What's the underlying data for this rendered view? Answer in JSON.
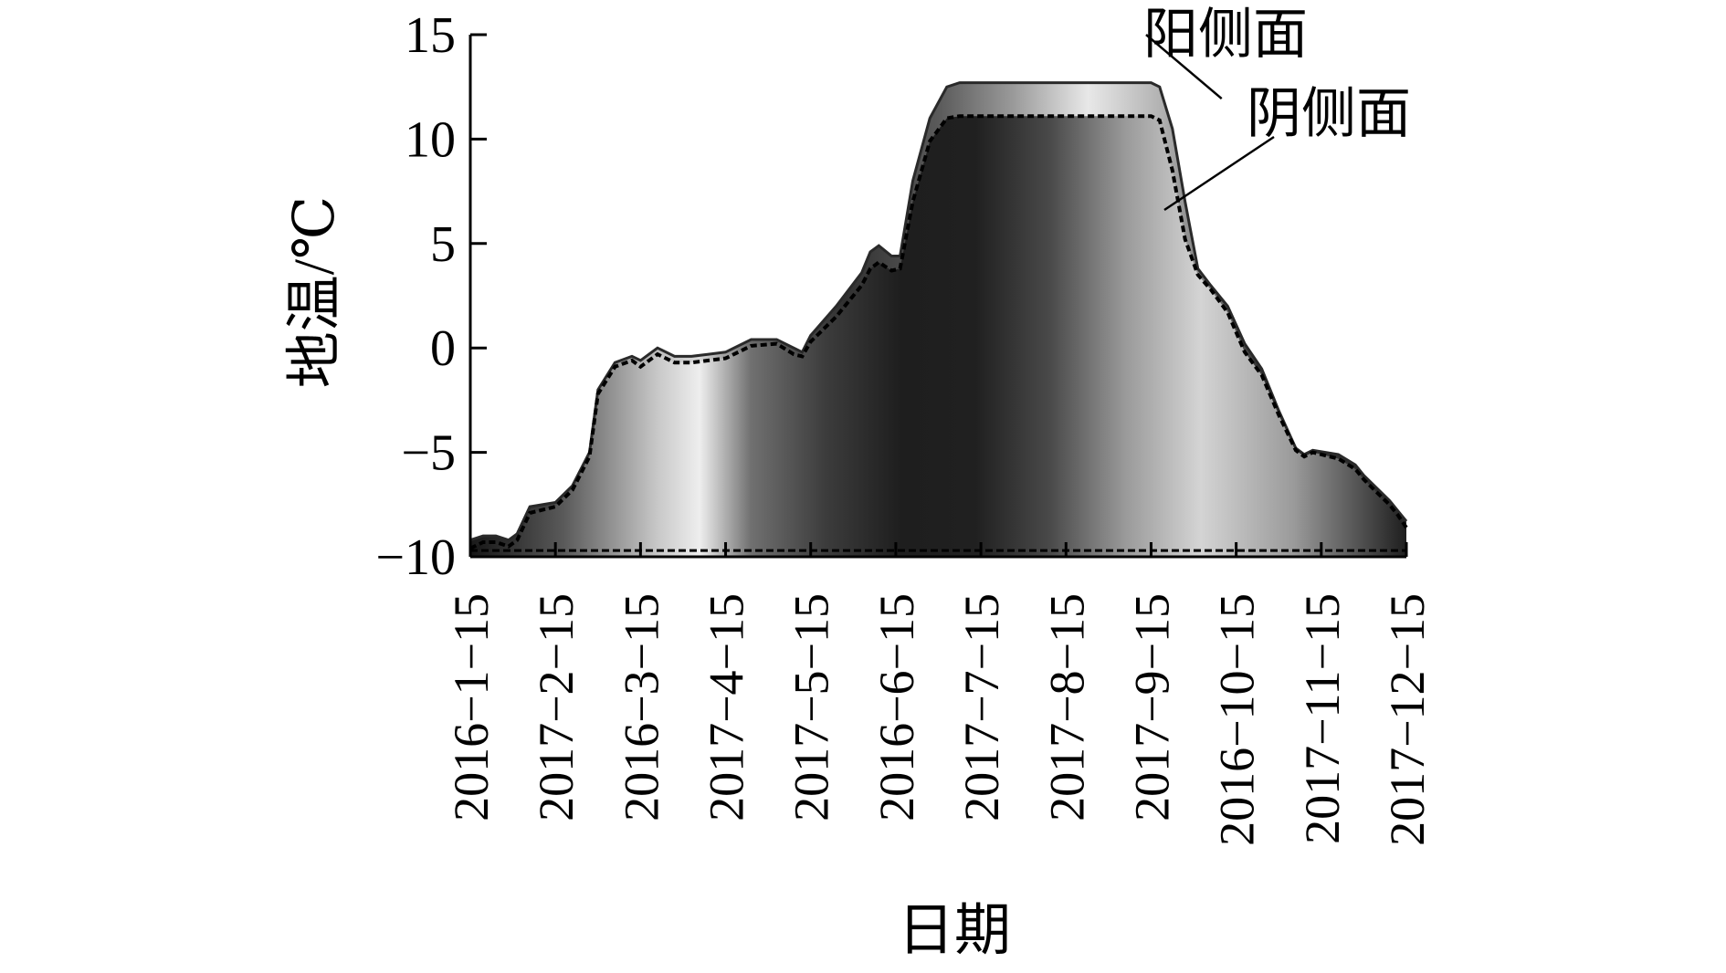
{
  "chart_data": {
    "type": "area",
    "title": "",
    "xlabel": "日期",
    "ylabel": "地温/℃",
    "ylim": [
      -10,
      15
    ],
    "y_ticks": [
      15,
      10,
      5,
      0,
      -5,
      -10
    ],
    "y_tick_labels": [
      "15",
      "10",
      "5",
      "0",
      "−5",
      "−10"
    ],
    "x_tick_labels": [
      "2016−1−15",
      "2017−2−15",
      "2016−3−15",
      "2017−4−15",
      "2017−5−15",
      "2016−6−15",
      "2017−7−15",
      "2017−8−15",
      "2017−9−15",
      "2016−10−15",
      "2017−11−15",
      "2017−12−15"
    ],
    "grid": false,
    "legend": "none",
    "annotations": [
      "阳侧面",
      "阴侧面"
    ],
    "series": [
      {
        "name": "阳侧面",
        "x": [
          0,
          0.15,
          0.3,
          0.45,
          0.55,
          0.7,
          1.0,
          1.2,
          1.4,
          1.5,
          1.7,
          1.9,
          2.0,
          2.2,
          2.4,
          2.6,
          2.8,
          3.0,
          3.3,
          3.6,
          3.8,
          3.9,
          4.0,
          4.3,
          4.6,
          4.7,
          4.8,
          4.95,
          5.05,
          5.2,
          5.4,
          5.6,
          5.75,
          6.0,
          6.5,
          7.0,
          7.5,
          7.8,
          8.0,
          8.1,
          8.25,
          8.4,
          8.55,
          8.7,
          8.9,
          9.1,
          9.3,
          9.5,
          9.7,
          9.8,
          9.9,
          10.2,
          10.4,
          10.5,
          10.6,
          10.8,
          10.9,
          11.0
        ],
        "values": [
          -9.2,
          -9.0,
          -9.0,
          -9.2,
          -8.9,
          -7.6,
          -7.4,
          -6.6,
          -5.0,
          -2.0,
          -0.7,
          -0.4,
          -0.6,
          0.0,
          -0.4,
          -0.4,
          -0.3,
          -0.2,
          0.4,
          0.4,
          0.0,
          -0.2,
          0.6,
          2.0,
          3.6,
          4.6,
          4.9,
          4.4,
          4.4,
          8.0,
          11.0,
          12.5,
          12.7,
          12.7,
          12.7,
          12.7,
          12.7,
          12.7,
          12.7,
          12.5,
          10.5,
          7.0,
          3.8,
          3.0,
          2.0,
          0.2,
          -1.0,
          -3.0,
          -4.8,
          -5.1,
          -4.9,
          -5.1,
          -5.6,
          -6.1,
          -6.5,
          -7.3,
          -7.8,
          -8.3
        ]
      },
      {
        "name": "阴侧面",
        "x": [
          0,
          0.15,
          0.3,
          0.45,
          0.55,
          0.7,
          1.0,
          1.2,
          1.4,
          1.5,
          1.7,
          1.9,
          2.0,
          2.2,
          2.4,
          2.6,
          2.8,
          3.0,
          3.3,
          3.6,
          3.8,
          3.9,
          4.0,
          4.3,
          4.6,
          4.7,
          4.8,
          4.95,
          5.05,
          5.2,
          5.4,
          5.6,
          5.75,
          6.0,
          6.5,
          7.0,
          7.5,
          7.8,
          8.0,
          8.1,
          8.25,
          8.4,
          8.55,
          8.7,
          8.9,
          9.1,
          9.3,
          9.5,
          9.7,
          9.8,
          9.9,
          10.2,
          10.4,
          10.5,
          10.6,
          10.8,
          10.9,
          11.0
        ],
        "values": [
          -9.6,
          -9.3,
          -9.3,
          -9.5,
          -9.2,
          -7.9,
          -7.6,
          -6.8,
          -5.2,
          -2.2,
          -0.9,
          -0.6,
          -0.9,
          -0.3,
          -0.7,
          -0.7,
          -0.6,
          -0.5,
          0.1,
          0.2,
          -0.3,
          -0.4,
          0.3,
          1.5,
          3.0,
          3.8,
          4.1,
          3.7,
          3.8,
          7.0,
          9.9,
          11.0,
          11.1,
          11.1,
          11.1,
          11.1,
          11.1,
          11.1,
          11.1,
          10.9,
          8.5,
          5.2,
          3.5,
          2.8,
          1.7,
          -0.2,
          -1.3,
          -3.2,
          -4.9,
          -5.2,
          -5.0,
          -5.3,
          -5.8,
          -6.3,
          -6.7,
          -7.5,
          -8.0,
          -8.6
        ]
      },
      {
        "name": "",
        "x": [
          0,
          11.0
        ],
        "values": [
          -9.7,
          -9.7
        ]
      }
    ]
  }
}
